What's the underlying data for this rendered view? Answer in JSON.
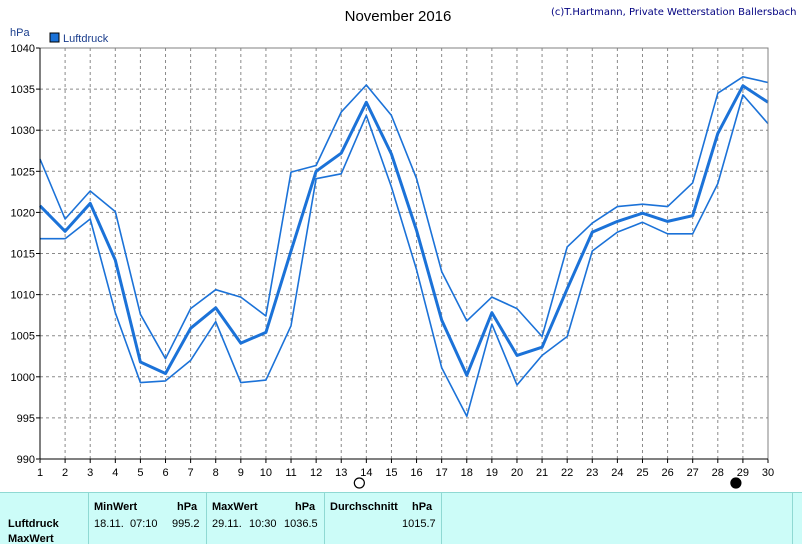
{
  "chart_data": {
    "type": "line",
    "title": "November 2016",
    "credit": "(c)T.Hartmann, Private Wetterstation Ballersbach",
    "ylabel": "hPa",
    "ylim": [
      990,
      1040
    ],
    "yticks": [
      990,
      995,
      1000,
      1005,
      1010,
      1015,
      1020,
      1025,
      1030,
      1035,
      1040
    ],
    "x": [
      1,
      2,
      3,
      4,
      5,
      6,
      7,
      8,
      9,
      10,
      11,
      12,
      13,
      14,
      15,
      16,
      17,
      18,
      19,
      20,
      21,
      22,
      23,
      24,
      25,
      26,
      27,
      28,
      29,
      30
    ],
    "grid": true,
    "legend": [
      {
        "label": "Luftdruck",
        "color": "#1b72d8"
      }
    ],
    "series": [
      {
        "name": "Luftdruck",
        "role": "average",
        "values": [
          1020.8,
          1017.7,
          1021.1,
          1014.2,
          1001.8,
          1000.4,
          1005.9,
          1008.4,
          1004.1,
          1005.4,
          1015.3,
          1025.0,
          1027.2,
          1033.4,
          1027.1,
          1017.8,
          1006.9,
          1000.2,
          1007.8,
          1002.6,
          1003.6,
          1010.7,
          1017.6,
          1018.9,
          1019.9,
          1018.9,
          1019.6,
          1029.6,
          1035.4,
          1033.4
        ]
      },
      {
        "name": "",
        "role": "maximum",
        "values": [
          1026.5,
          1019.2,
          1022.6,
          1020.1,
          1007.6,
          1002.2,
          1008.3,
          1010.6,
          1009.7,
          1007.4,
          1024.9,
          1025.7,
          1032.2,
          1035.5,
          1031.8,
          1024.1,
          1012.8,
          1006.8,
          1009.7,
          1008.3,
          1004.9,
          1015.8,
          1018.7,
          1020.7,
          1021.0,
          1020.7,
          1023.6,
          1034.5,
          1036.5,
          1035.8
        ]
      },
      {
        "name": "",
        "role": "minimum",
        "values": [
          1016.8,
          1016.8,
          1019.2,
          1007.8,
          999.3,
          999.5,
          1002.0,
          1006.7,
          999.3,
          999.6,
          1006.2,
          1024.1,
          1024.7,
          1031.8,
          1023.1,
          1013.0,
          1001.1,
          995.2,
          1006.4,
          999.0,
          1002.6,
          1004.9,
          1015.3,
          1017.6,
          1018.8,
          1017.4,
          1017.4,
          1023.5,
          1034.3,
          1030.8
        ]
      }
    ],
    "markers": [
      {
        "symbol": "new-moon",
        "x": 14
      },
      {
        "symbol": "full-moon",
        "x": 29
      }
    ]
  },
  "stats": {
    "row_label_1": "Luftdruck",
    "row_label_2": "MaxWert",
    "min": {
      "header": "MinWert",
      "unit": "hPa",
      "date": "18.11.",
      "time": "07:10",
      "value": "995.2"
    },
    "max": {
      "header": "MaxWert",
      "unit": "hPa",
      "date": "29.11.",
      "time": "10:30",
      "value": "1036.5"
    },
    "avg": {
      "header": "Durchschnitt",
      "unit": "hPa",
      "value": "1015.7"
    }
  },
  "colors": {
    "line": "#1b72d8",
    "grid": "#8a8a8a",
    "panel": "#ccfcf8"
  }
}
